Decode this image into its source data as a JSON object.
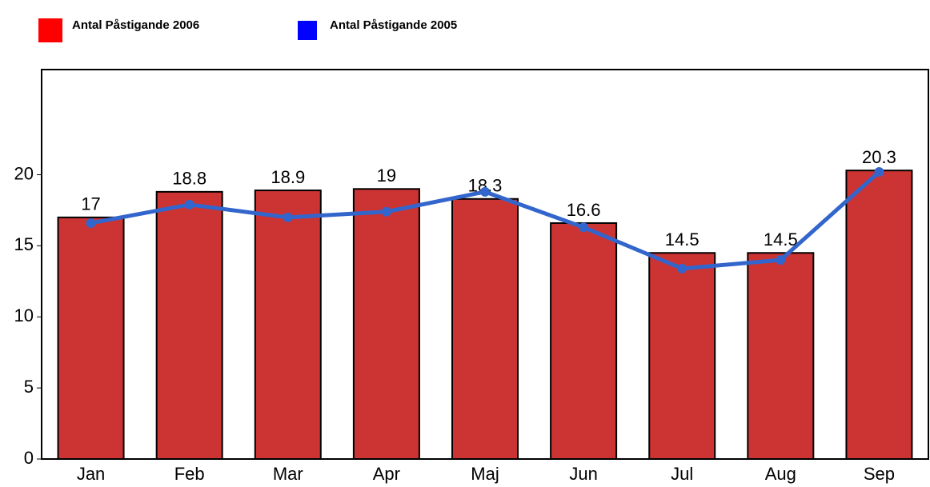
{
  "chart_data": {
    "type": "bar",
    "categories": [
      "Jan",
      "Feb",
      "Mar",
      "Apr",
      "Maj",
      "Jun",
      "Jul",
      "Aug",
      "Sep"
    ],
    "series": [
      {
        "name": "Antal Påstigande 2006",
        "type": "bar",
        "color": "#cc3333",
        "legend_color": "#ff0000",
        "values": [
          17,
          18.8,
          18.9,
          19,
          18.3,
          16.6,
          14.5,
          14.5,
          20.3
        ]
      },
      {
        "name": "Antal Påstigande 2005",
        "type": "line",
        "color": "#3366cc",
        "legend_color": "#0000ff",
        "values": [
          16.6,
          17.9,
          17.0,
          17.4,
          18.8,
          16.3,
          13.4,
          14.0,
          20.2
        ]
      }
    ],
    "ylim": [
      0,
      27.4
    ],
    "yticks": [
      0,
      5,
      10,
      15,
      20
    ],
    "legend": "top-left"
  }
}
